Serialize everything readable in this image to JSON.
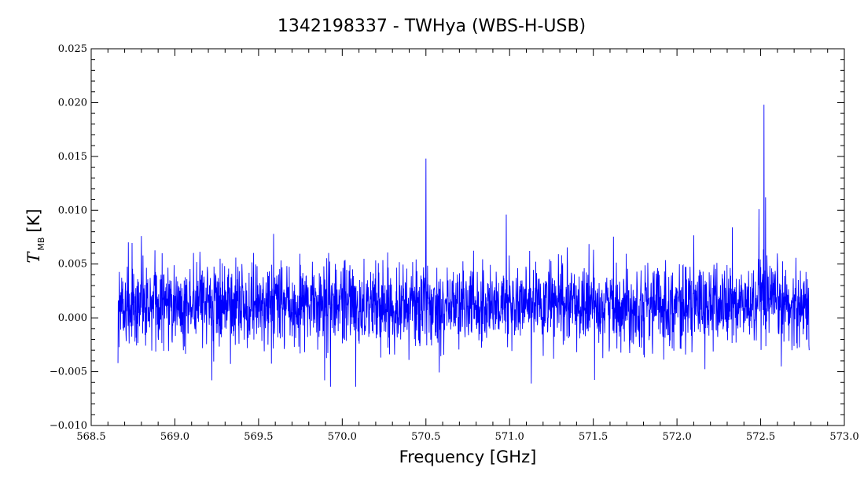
{
  "chart_data": {
    "type": "line",
    "title": "1342198337 - TWHya (WBS-H-USB)",
    "xlabel": "Frequency [GHz]",
    "ylabel": {
      "main": "T",
      "subscript": "MB",
      "unit": "[K]"
    },
    "xlim": [
      568.5,
      573.0
    ],
    "ylim": [
      -0.01,
      0.025
    ],
    "x_ticks": [
      568.5,
      569.0,
      569.5,
      570.0,
      570.5,
      571.0,
      571.5,
      572.0,
      572.5,
      573.0
    ],
    "y_ticks": [
      -0.01,
      -0.005,
      0.0,
      0.005,
      0.01,
      0.015,
      0.02,
      0.025
    ],
    "x_tick_labels": [
      "568.5",
      "569.0",
      "569.5",
      "570.0",
      "570.5",
      "571.0",
      "571.5",
      "572.0",
      "572.5",
      "573.0"
    ],
    "y_tick_labels": [
      "−0.010",
      "−0.005",
      "0.000",
      "0.005",
      "0.010",
      "0.015",
      "0.020",
      "0.025"
    ],
    "grid": false,
    "series": [
      {
        "color": "#0000ff",
        "x_range": [
          568.66,
          572.79
        ],
        "baseline": 0.0012,
        "noise_sigma": 0.0019,
        "notable_points": [
          {
            "x": 568.66,
            "y": -0.0042
          },
          {
            "x": 568.8,
            "y": 0.0076
          },
          {
            "x": 569.93,
            "y": -0.0064
          },
          {
            "x": 570.08,
            "y": -0.0064
          },
          {
            "x": 570.5,
            "y": 0.0148
          },
          {
            "x": 570.98,
            "y": 0.0096
          },
          {
            "x": 571.13,
            "y": -0.0061
          },
          {
            "x": 572.33,
            "y": 0.0084
          },
          {
            "x": 572.49,
            "y": 0.0101
          },
          {
            "x": 572.52,
            "y": 0.0198
          },
          {
            "x": 572.53,
            "y": 0.0112
          },
          {
            "x": 572.79,
            "y": -0.003
          }
        ]
      }
    ]
  }
}
